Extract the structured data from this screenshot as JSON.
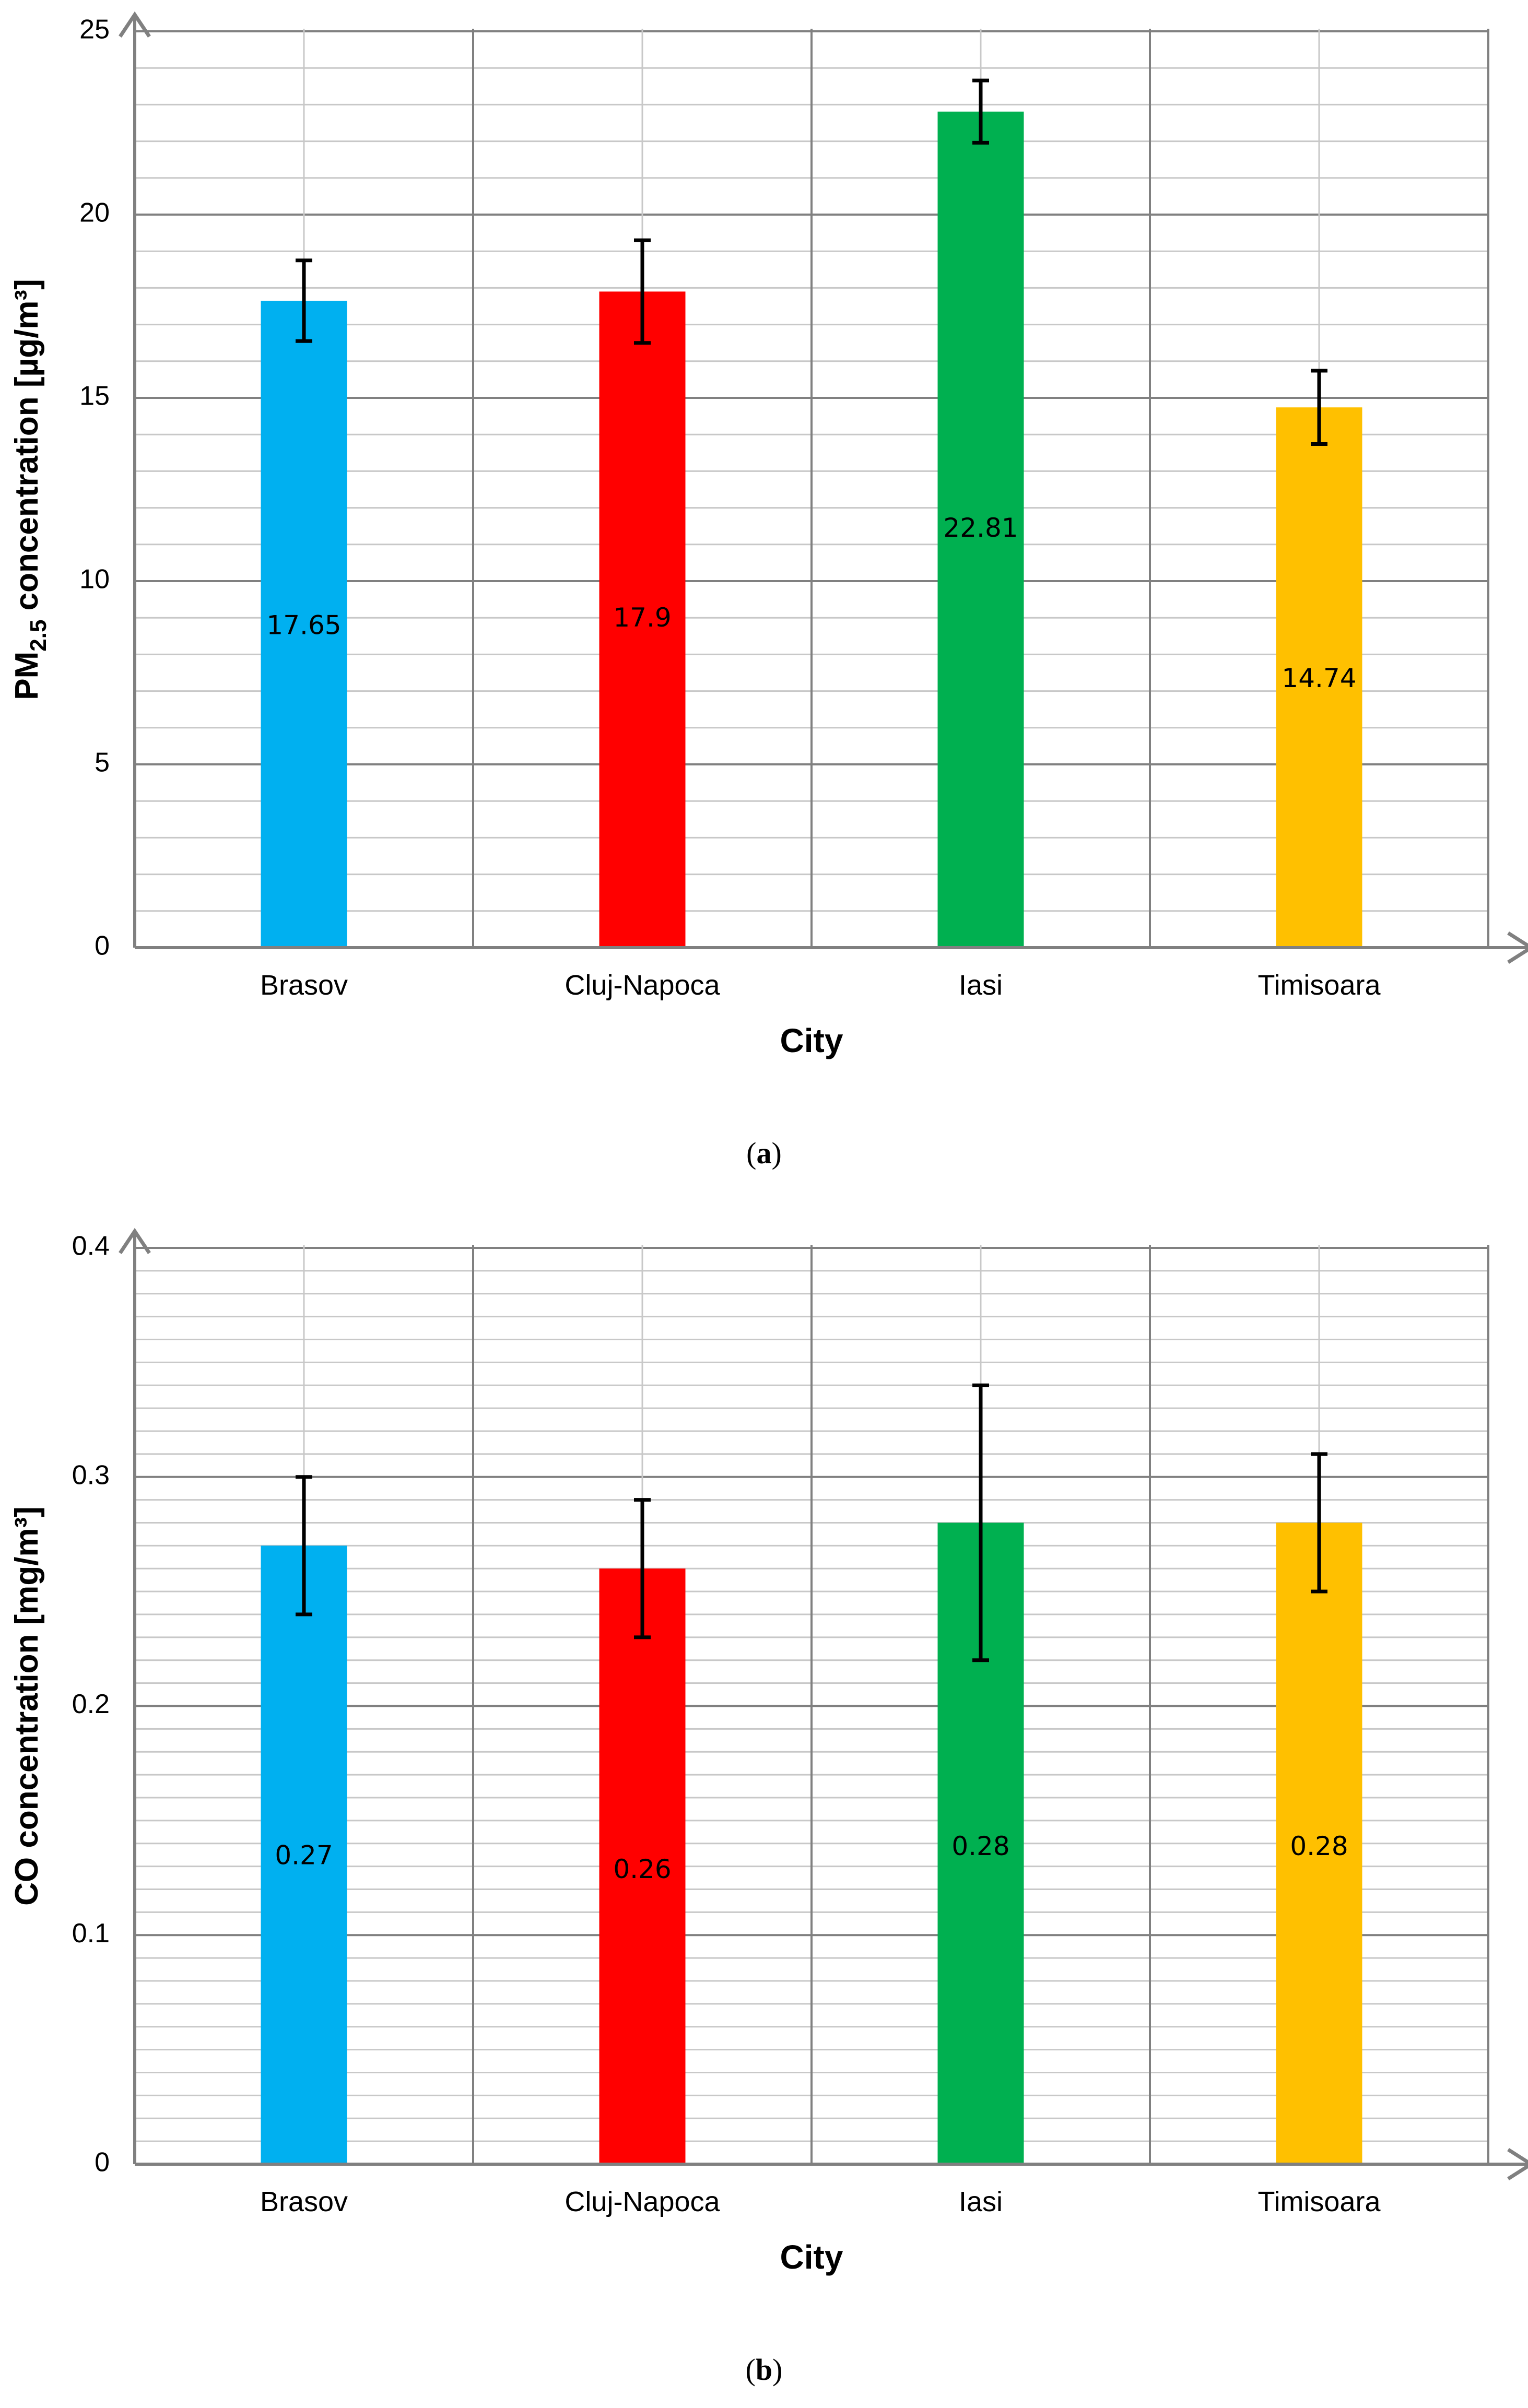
{
  "colors": {
    "brasov": "#00b0f0",
    "cluj": "#ff0000",
    "iasi": "#00b050",
    "timisoara": "#ffc000",
    "minor_grid": "#c8c8c8",
    "major_grid": "#808080",
    "axis": "#808080",
    "text": "#000000"
  },
  "chart_data": [
    {
      "type": "bar",
      "panel": "a",
      "categories": [
        "Brasov",
        "Cluj-Napoca",
        "Iasi",
        "Timisoara"
      ],
      "values": [
        17.65,
        17.9,
        22.81,
        14.74
      ],
      "errors": [
        1.1,
        1.4,
        0.85,
        1.0
      ],
      "data_labels": [
        "17.65",
        "17.9",
        "22.81",
        "14.74"
      ],
      "label_values": [
        8.75,
        8.95,
        11.4,
        7.3
      ],
      "ylim": [
        0,
        25
      ],
      "ytick_labels": [
        "0",
        "5",
        "10",
        "15",
        "20",
        "25"
      ],
      "ylabel_main": "PM",
      "ylabel_sub": "2.5",
      "ylabel_rest": "  concentration [µg/m³]",
      "xlabel": "City",
      "grid": true,
      "minor_steps": 25,
      "major_every": 5
    },
    {
      "type": "bar",
      "panel": "b",
      "categories": [
        "Brasov",
        "Cluj-Napoca",
        "Iasi",
        "Timisoara"
      ],
      "values": [
        0.27,
        0.26,
        0.28,
        0.28
      ],
      "errors": [
        0.03,
        0.03,
        0.06,
        0.03
      ],
      "data_labels": [
        "0.27",
        "0.26",
        "0.28",
        "0.28"
      ],
      "label_values": [
        0.134,
        0.128,
        0.138,
        0.138
      ],
      "ylim": [
        0,
        0.4
      ],
      "ytick_labels": [
        "0",
        "0.1",
        "0.2",
        "0.3",
        "0.4"
      ],
      "ylabel_main": "CO concentration [mg/m³]",
      "ylabel_sub": "",
      "ylabel_rest": "",
      "xlabel": "City",
      "grid": true,
      "minor_steps": 40,
      "major_every": 10
    }
  ],
  "captions": {
    "a": "a",
    "b": "b"
  }
}
